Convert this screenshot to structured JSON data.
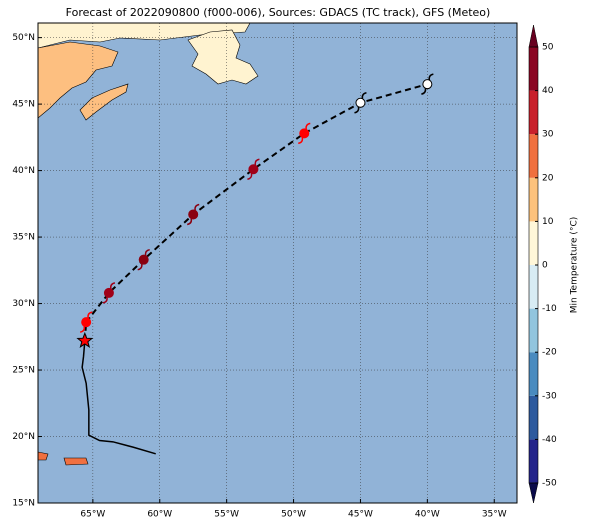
{
  "chart_data": {
    "type": "map",
    "title": "Forecast of 2022090800 (f000-006), Sources: GDACS (TC track), GFS (Meteo)",
    "xlim": [
      -69.1,
      -33.3
    ],
    "ylim": [
      15,
      51.1
    ],
    "xticks": [
      {
        "value": -65,
        "label": "65°W"
      },
      {
        "value": -60,
        "label": "60°W"
      },
      {
        "value": -55,
        "label": "55°W"
      },
      {
        "value": -50,
        "label": "50°W"
      },
      {
        "value": -45,
        "label": "45°W"
      },
      {
        "value": -40,
        "label": "40°W"
      },
      {
        "value": -35,
        "label": "35°W"
      }
    ],
    "yticks": [
      {
        "value": 15,
        "label": "15°N"
      },
      {
        "value": 20,
        "label": "20°N"
      },
      {
        "value": 25,
        "label": "25°N"
      },
      {
        "value": 30,
        "label": "30°N"
      },
      {
        "value": 35,
        "label": "35°N"
      },
      {
        "value": 40,
        "label": "40°N"
      },
      {
        "value": 45,
        "label": "45°N"
      },
      {
        "value": 50,
        "label": "50°N"
      }
    ],
    "grid": true,
    "past_track": {
      "lon": [
        -65.6,
        -65.7,
        -65.8,
        -65.5,
        -65.3,
        -65.3,
        -64.5,
        -63.5,
        -62.0,
        -60.3
      ],
      "lat": [
        27.2,
        26.0,
        25.2,
        24.0,
        22.0,
        20.1,
        19.7,
        19.6,
        19.2,
        18.7
      ]
    },
    "current_position": {
      "lon": -65.6,
      "lat": 27.2
    },
    "forecast": {
      "lon": [
        -65.5,
        -63.8,
        -61.2,
        -57.5,
        -53.0,
        -49.2,
        -45.0,
        -40.0
      ],
      "lat": [
        28.6,
        30.8,
        33.3,
        36.7,
        40.1,
        42.8,
        45.1,
        46.5
      ],
      "colors": [
        "#ff0000",
        "#a00018",
        "#8a0010",
        "#8a0010",
        "#a00018",
        "#ff0000",
        "#ffffff",
        "#ffffff"
      ]
    },
    "colorbar": {
      "label": "Min Temperature (°C)",
      "lim": [
        -50,
        50
      ],
      "ticks": [
        -50,
        -40,
        -30,
        -20,
        -10,
        0,
        10,
        20,
        30,
        40,
        50
      ],
      "colors": [
        "#24248a",
        "#2d5a9e",
        "#4a8bbf",
        "#92c5de",
        "#d8ecf4",
        "#fff7d9",
        "#fdc27c",
        "#f0703f",
        "#c8202b",
        "#8a0522"
      ],
      "under": "#0b0b4a",
      "over": "#67001f"
    }
  }
}
